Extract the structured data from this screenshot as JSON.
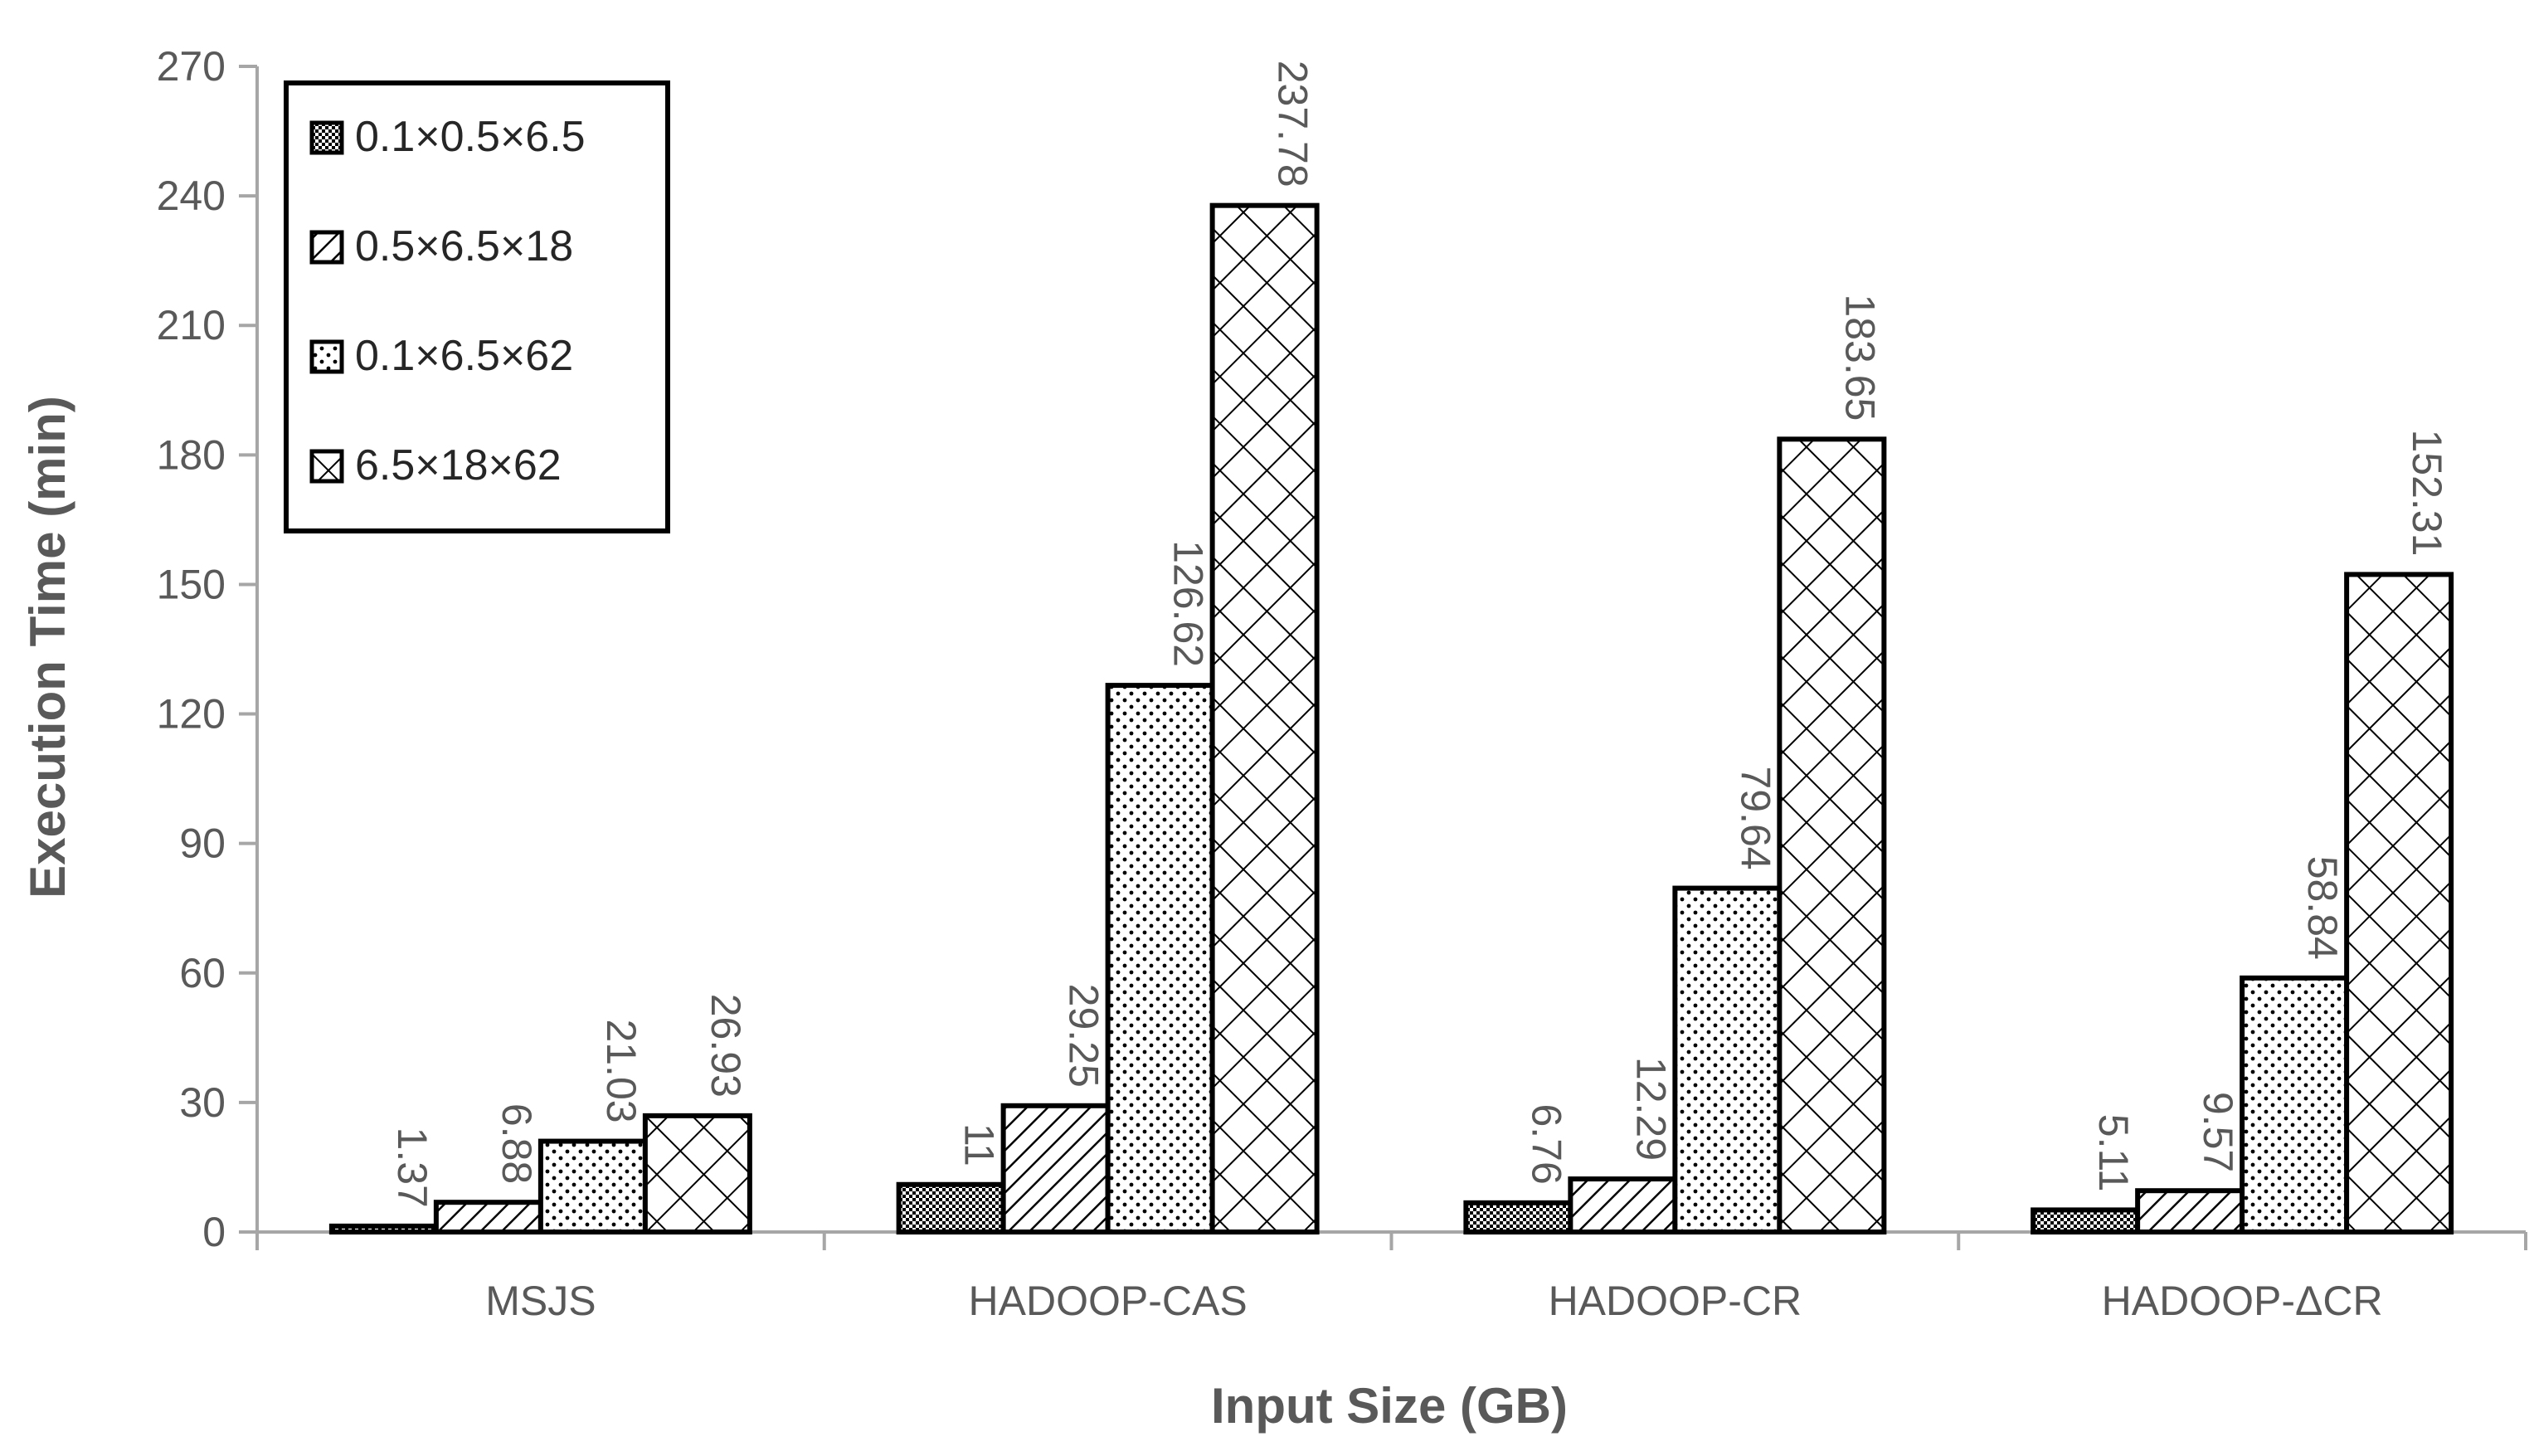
{
  "chart_data": {
    "type": "bar",
    "categories": [
      "MSJS",
      "HADOOP-CAS",
      "HADOOP-CR",
      "HADOOP-ΔCR"
    ],
    "series": [
      {
        "name": "0.1×0.5×6.5",
        "values": [
          1.37,
          11,
          6.76,
          5.11
        ],
        "labels": [
          "1.37",
          "11",
          "6.76",
          "5.11"
        ],
        "pattern": "checker"
      },
      {
        "name": "0.5×6.5×18",
        "values": [
          6.88,
          29.25,
          12.29,
          9.57
        ],
        "labels": [
          "6.88",
          "29.25",
          "12.29",
          "9.57"
        ],
        "pattern": "diagonal"
      },
      {
        "name": "0.1×6.5×62",
        "values": [
          21.03,
          126.62,
          79.64,
          58.84
        ],
        "labels": [
          "21.03",
          "126.62",
          "79.64",
          "58.84"
        ],
        "pattern": "dots"
      },
      {
        "name": "6.5×18×62",
        "values": [
          26.93,
          237.78,
          183.65,
          152.31
        ],
        "labels": [
          "26.93",
          "237.78",
          "183.65",
          "152.31"
        ],
        "pattern": "crosshatch"
      }
    ],
    "xlabel": "Input Size (GB)",
    "ylabel": "Execution Time (min)",
    "ylim": [
      0,
      270
    ],
    "yticks": [
      "0",
      "30",
      "60",
      "90",
      "120",
      "150",
      "180",
      "210",
      "240",
      "270"
    ],
    "grid": false,
    "legend_position": "top-left"
  }
}
